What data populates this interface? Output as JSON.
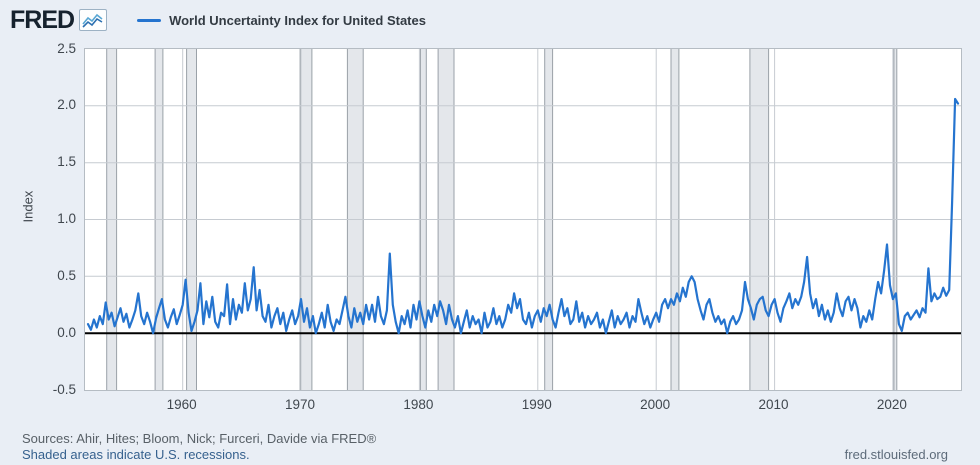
{
  "header": {
    "logo_text": "FRED",
    "legend_label": "World Uncertainty Index for United States"
  },
  "chart_data": {
    "type": "line",
    "title": "World Uncertainty Index for United States",
    "ylabel": "Index",
    "line_color": "#2574cf",
    "recession_fill": "#e4e7eb",
    "recession_edge": "#9aa1a8",
    "grid_color": "#c6cbd1",
    "zero_line_color": "#000000",
    "background_color": "#e9eef5",
    "plot_background": "#ffffff",
    "ylim": [
      -0.5,
      2.5
    ],
    "yticks": [
      2.5,
      2.0,
      1.5,
      1.0,
      0.5,
      0.0,
      -0.5
    ],
    "xlim": [
      1951.75,
      2025.75
    ],
    "xticks": [
      1960,
      1970,
      1980,
      1990,
      2000,
      2010,
      2020
    ],
    "series_start_year": 1952.0,
    "series_step_years": 0.25,
    "values": [
      0.08,
      0.03,
      0.12,
      0.05,
      0.15,
      0.08,
      0.27,
      0.12,
      0.18,
      0.06,
      0.14,
      0.22,
      0.1,
      0.17,
      0.05,
      0.12,
      0.2,
      0.35,
      0.15,
      0.08,
      0.18,
      0.1,
      0.0,
      0.13,
      0.22,
      0.3,
      0.12,
      0.05,
      0.14,
      0.21,
      0.08,
      0.16,
      0.25,
      0.47,
      0.18,
      0.02,
      0.1,
      0.2,
      0.44,
      0.08,
      0.28,
      0.14,
      0.32,
      0.1,
      0.05,
      0.18,
      0.15,
      0.43,
      0.08,
      0.3,
      0.12,
      0.25,
      0.18,
      0.44,
      0.2,
      0.3,
      0.58,
      0.2,
      0.38,
      0.15,
      0.1,
      0.25,
      0.05,
      0.15,
      0.22,
      0.08,
      0.18,
      0.02,
      0.12,
      0.2,
      0.08,
      0.15,
      0.3,
      0.1,
      0.22,
      0.05,
      0.15,
      0.0,
      0.08,
      0.18,
      0.05,
      0.25,
      0.1,
      0.02,
      0.12,
      0.08,
      0.2,
      0.32,
      0.15,
      0.05,
      0.22,
      0.1,
      0.18,
      0.08,
      0.25,
      0.12,
      0.25,
      0.1,
      0.32,
      0.15,
      0.08,
      0.2,
      0.7,
      0.25,
      0.1,
      0.0,
      0.15,
      0.08,
      0.2,
      0.05,
      0.25,
      0.12,
      0.28,
      0.15,
      0.05,
      0.2,
      0.1,
      0.25,
      0.15,
      0.28,
      0.2,
      0.08,
      0.25,
      0.12,
      0.05,
      0.15,
      0.0,
      0.1,
      0.2,
      0.05,
      0.15,
      0.08,
      0.12,
      0.0,
      0.18,
      0.05,
      0.1,
      0.22,
      0.08,
      0.15,
      0.05,
      0.12,
      0.25,
      0.18,
      0.35,
      0.22,
      0.3,
      0.12,
      0.08,
      0.18,
      0.05,
      0.15,
      0.2,
      0.1,
      0.22,
      0.15,
      0.25,
      0.12,
      0.05,
      0.18,
      0.3,
      0.15,
      0.22,
      0.08,
      0.12,
      0.28,
      0.1,
      0.18,
      0.05,
      0.15,
      0.08,
      0.12,
      0.18,
      0.05,
      0.12,
      0.0,
      0.1,
      0.2,
      0.05,
      0.15,
      0.08,
      0.12,
      0.18,
      0.05,
      0.15,
      0.1,
      0.3,
      0.18,
      0.08,
      0.15,
      0.05,
      0.12,
      0.18,
      0.1,
      0.25,
      0.3,
      0.22,
      0.3,
      0.25,
      0.35,
      0.28,
      0.4,
      0.32,
      0.45,
      0.5,
      0.45,
      0.3,
      0.2,
      0.12,
      0.25,
      0.3,
      0.18,
      0.1,
      0.15,
      0.08,
      0.12,
      0.0,
      0.1,
      0.15,
      0.08,
      0.12,
      0.2,
      0.45,
      0.3,
      0.22,
      0.12,
      0.25,
      0.3,
      0.32,
      0.2,
      0.15,
      0.25,
      0.3,
      0.18,
      0.1,
      0.22,
      0.28,
      0.35,
      0.22,
      0.3,
      0.25,
      0.32,
      0.45,
      0.67,
      0.35,
      0.22,
      0.3,
      0.15,
      0.25,
      0.12,
      0.2,
      0.1,
      0.18,
      0.35,
      0.22,
      0.15,
      0.28,
      0.32,
      0.2,
      0.3,
      0.22,
      0.05,
      0.15,
      0.1,
      0.2,
      0.12,
      0.3,
      0.45,
      0.35,
      0.55,
      0.78,
      0.42,
      0.3,
      0.35,
      0.08,
      0.02,
      0.15,
      0.18,
      0.12,
      0.16,
      0.2,
      0.14,
      0.22,
      0.18,
      0.57,
      0.28,
      0.35,
      0.3,
      0.32,
      0.4,
      0.33,
      0.38,
      1.15,
      2.06,
      2.02
    ],
    "recessions": [
      [
        1953.58,
        1954.42
      ],
      [
        1957.67,
        1958.33
      ],
      [
        1960.33,
        1961.17
      ],
      [
        1969.92,
        1970.92
      ],
      [
        1973.92,
        1975.25
      ],
      [
        1980.08,
        1980.58
      ],
      [
        1981.58,
        1982.92
      ],
      [
        1990.58,
        1991.25
      ],
      [
        2001.25,
        2001.92
      ],
      [
        2007.92,
        2009.5
      ],
      [
        2020.08,
        2020.33
      ]
    ],
    "legend_position": "top",
    "grid": true
  },
  "footer": {
    "sources": "Sources: Ahir, Hites; Bloom, Nick; Furceri, Davide via FRED®",
    "recession_note": "Shaded areas indicate U.S. recessions.",
    "site": "fred.stlouisfed.org"
  }
}
